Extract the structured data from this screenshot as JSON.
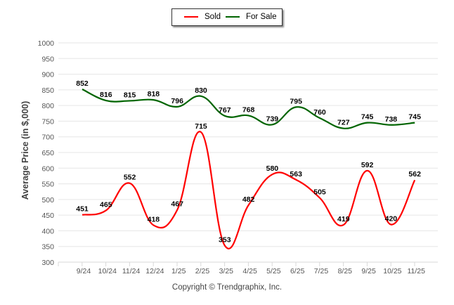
{
  "chart_data": {
    "type": "line",
    "title": "",
    "xlabel": "",
    "ylabel": "Average Price (in $,000)",
    "ylim": [
      300,
      1000
    ],
    "yticks": [
      300,
      350,
      400,
      450,
      500,
      550,
      600,
      650,
      700,
      750,
      800,
      850,
      900,
      950,
      1000
    ],
    "grid": true,
    "legend_position": "top-center",
    "categories": [
      "9/24",
      "10/24",
      "11/24",
      "12/24",
      "1/25",
      "2/25",
      "3/25",
      "4/25",
      "5/25",
      "6/25",
      "7/25",
      "8/25",
      "9/25",
      "10/25",
      "11/25"
    ],
    "series": [
      {
        "name": "Sold",
        "color": "#ff0000",
        "values": [
          451,
          465,
          552,
          418,
          467,
          715,
          353,
          482,
          580,
          563,
          505,
          419,
          592,
          420,
          562
        ]
      },
      {
        "name": "For Sale",
        "color": "#006400",
        "values": [
          852,
          816,
          815,
          818,
          796,
          830,
          767,
          768,
          739,
          795,
          760,
          727,
          745,
          738,
          745
        ]
      }
    ],
    "copyright": "Copyright © Trendgraphix, Inc."
  }
}
